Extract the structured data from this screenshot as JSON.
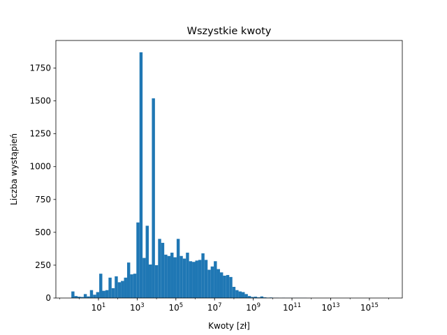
{
  "chart_data": {
    "type": "bar",
    "title": "Wszystkie kwoty",
    "xlabel": "Kwoty [zł]",
    "ylabel": "Liczba wystąpień",
    "x_scale": "log10",
    "xlim_log10": [
      -1.2,
      16.7
    ],
    "ylim": [
      0,
      1960
    ],
    "bar_color": "#1f77b4",
    "x_ticks": [
      {
        "exp": 1,
        "base": "10",
        "sup": "1"
      },
      {
        "exp": 3,
        "base": "10",
        "sup": "3"
      },
      {
        "exp": 5,
        "base": "10",
        "sup": "5"
      },
      {
        "exp": 7,
        "base": "10",
        "sup": "7"
      },
      {
        "exp": 9,
        "base": "10",
        "sup": "9"
      },
      {
        "exp": 11,
        "base": "10",
        "sup": "11"
      },
      {
        "exp": 13,
        "base": "10",
        "sup": "13"
      },
      {
        "exp": 15,
        "base": "10",
        "sup": "15"
      }
    ],
    "y_ticks": [
      {
        "value": 0,
        "label": "0"
      },
      {
        "value": 250,
        "label": "250"
      },
      {
        "value": 500,
        "label": "500"
      },
      {
        "value": 750,
        "label": "750"
      },
      {
        "value": 1000,
        "label": "1000"
      },
      {
        "value": 1250,
        "label": "1250"
      },
      {
        "value": 1500,
        "label": "1500"
      },
      {
        "value": 1750,
        "label": "1750"
      }
    ],
    "bin_width_log10": 0.16,
    "bins_log10_start": [
      -0.4,
      -0.24,
      -0.08,
      0.08,
      0.24,
      0.4,
      0.56,
      0.72,
      0.88,
      1.04,
      1.2,
      1.36,
      1.52,
      1.68,
      1.84,
      2.0,
      2.16,
      2.32,
      2.48,
      2.64,
      2.8,
      2.96,
      3.12,
      3.28,
      3.44,
      3.6,
      3.76,
      3.92,
      4.08,
      4.24,
      4.4,
      4.56,
      4.72,
      4.88,
      5.04,
      5.2,
      5.36,
      5.52,
      5.68,
      5.84,
      6.0,
      6.16,
      6.32,
      6.48,
      6.64,
      6.8,
      6.96,
      7.12,
      7.28,
      7.44,
      7.6,
      7.76,
      7.92,
      8.08,
      8.24,
      8.4,
      8.56,
      8.72,
      8.88,
      9.04,
      9.2,
      9.36,
      9.52,
      9.68,
      9.84,
      10.0,
      10.16,
      10.32,
      10.48,
      10.64,
      10.8,
      10.96,
      11.12,
      11.28,
      11.44,
      11.6
    ],
    "counts": [
      50,
      15,
      10,
      8,
      30,
      12,
      60,
      25,
      45,
      185,
      55,
      60,
      155,
      75,
      165,
      120,
      130,
      155,
      270,
      180,
      185,
      575,
      1870,
      305,
      550,
      255,
      1520,
      250,
      450,
      420,
      330,
      320,
      345,
      310,
      450,
      320,
      300,
      345,
      280,
      275,
      285,
      290,
      340,
      290,
      215,
      240,
      280,
      220,
      195,
      170,
      175,
      160,
      85,
      60,
      50,
      45,
      30,
      15,
      8,
      10,
      5,
      12,
      5,
      3,
      4,
      2,
      2,
      1,
      2,
      1,
      1,
      1,
      1,
      1,
      1,
      1
    ]
  }
}
